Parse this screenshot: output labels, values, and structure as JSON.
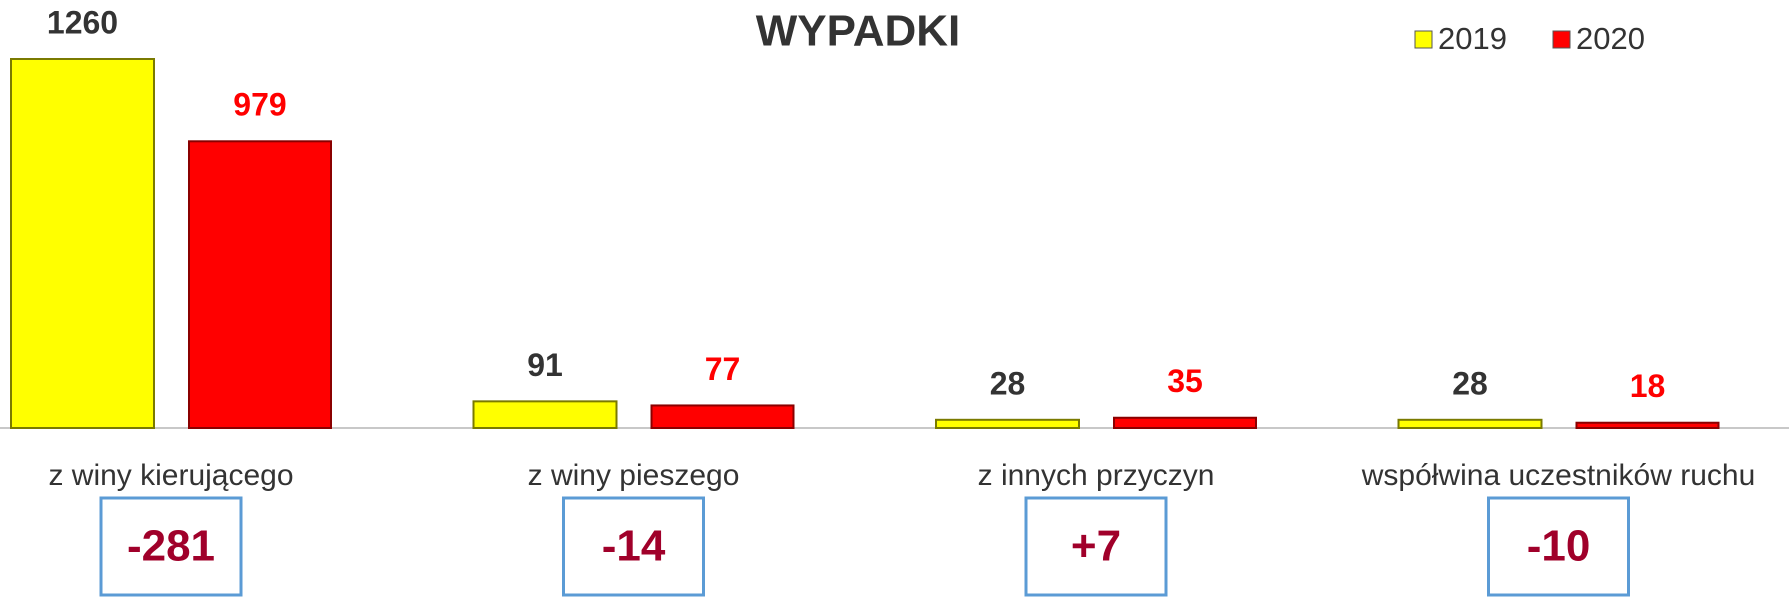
{
  "chart_data": {
    "type": "bar",
    "title": "WYPADKI",
    "categories": [
      "z winy kierującego",
      "z winy pieszego",
      "z innych przyczyn",
      "współwina uczestników ruchu"
    ],
    "series": [
      {
        "name": "2019",
        "color": "#ffff00",
        "label_color": "#333333",
        "values": [
          1260,
          91,
          28,
          28
        ]
      },
      {
        "name": "2020",
        "color": "#ff0000",
        "label_color": "#ff0000",
        "values": [
          979,
          77,
          35,
          18
        ]
      }
    ],
    "annotations": [
      "-281",
      "-14",
      "+7",
      "-10"
    ],
    "legend": "top-right"
  }
}
